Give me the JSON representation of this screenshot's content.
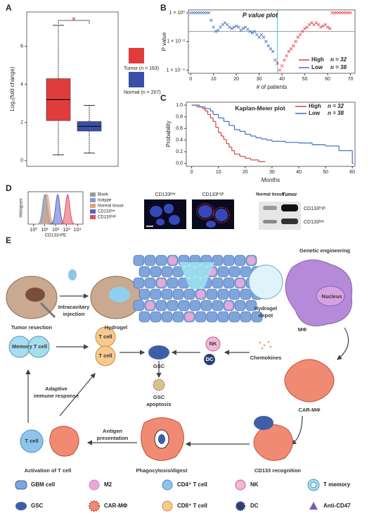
{
  "panels": {
    "A": {
      "letter": "A",
      "chart": {
        "type": "box",
        "ylabel": "Log₂(fold change)",
        "ylim": [
          -0.3,
          7.8
        ],
        "yticks": [
          0,
          2,
          4,
          6
        ],
        "significance": "*",
        "series": [
          {
            "name": "Tumor (n = 163)",
            "color": "#e03c3c",
            "min": 0.3,
            "q1": 2.1,
            "median": 3.2,
            "q3": 4.3,
            "max": 7.1
          },
          {
            "name": "Normal (n = 207)",
            "color": "#3a4fa8",
            "min": 0.4,
            "q1": 1.55,
            "median": 1.8,
            "q3": 2.05,
            "max": 2.9
          }
        ]
      }
    },
    "B": {
      "letter": "B",
      "chart": {
        "type": "scatter",
        "title": "P value plot",
        "xlabel": "# of patients",
        "ylabel": "P value",
        "log_y": true,
        "xlim": [
          -1,
          72
        ],
        "ylim": [
          6e-05,
          1.6
        ],
        "xticks": [
          0,
          10,
          20,
          30,
          40,
          50,
          60,
          70
        ],
        "yticks": [
          {
            "value": 0.0001,
            "label": "1 × 10⁻⁴"
          },
          {
            "value": 0.01,
            "label": "1 × 10⁻²"
          },
          {
            "value": 1,
            "label": "1 × 10⁰"
          }
        ],
        "threshold": 0.05,
        "cutoff": 38,
        "series": [
          {
            "name": "High",
            "n_label": "n = 32",
            "color": "#e03c3c",
            "x": [
              38,
              39,
              40,
              41,
              42,
              43,
              44,
              45,
              46,
              47,
              48,
              49,
              50,
              51,
              52,
              53,
              54,
              55,
              56,
              57,
              58,
              59,
              60,
              61,
              62,
              63,
              64,
              65,
              66,
              67,
              68,
              69,
              70
            ],
            "values": [
              0.0003,
              0.0001,
              0.0002,
              0.0005,
              0.001,
              0.002,
              0.003,
              0.005,
              0.01,
              0.02,
              0.03,
              0.05,
              0.08,
              0.1,
              0.15,
              0.2,
              0.15,
              0.2,
              0.15,
              0.1,
              0.12,
              0.15,
              0.1,
              0.08,
              1,
              1,
              1,
              1,
              1,
              1,
              1,
              1,
              1
            ]
          },
          {
            "name": "Low",
            "n_label": "n = 38",
            "color": "#3a6ec0",
            "x": [
              0,
              1,
              2,
              3,
              4,
              5,
              6,
              7,
              8,
              9,
              10,
              11,
              12,
              13,
              14,
              15,
              16,
              17,
              18,
              19,
              20,
              21,
              22,
              23,
              24,
              25,
              26,
              27,
              28,
              29,
              30,
              31,
              32,
              33,
              34,
              35,
              36,
              37
            ],
            "values": [
              1,
              1,
              1,
              1,
              1,
              1,
              1,
              1,
              1,
              0.3,
              0.1,
              0.05,
              0.06,
              0.1,
              0.15,
              0.2,
              0.15,
              0.1,
              0.08,
              0.1,
              0.12,
              0.1,
              0.06,
              0.08,
              0.1,
              0.07,
              0.05,
              0.04,
              0.05,
              0.03,
              0.02,
              0.03,
              0.02,
              0.01,
              0.005,
              0.003,
              0.002,
              0.0005
            ]
          }
        ]
      }
    },
    "C": {
      "letter": "C",
      "chart": {
        "type": "step",
        "title": "Kaplan-Meier plot",
        "xlabel": "Months",
        "ylabel": "Probability",
        "xlim": [
          -2,
          61
        ],
        "ylim": [
          -0.05,
          1.05
        ],
        "xticks": [
          0,
          10,
          20,
          30,
          40,
          50,
          60
        ],
        "yticks": [
          {
            "value": 0,
            "label": "0.0"
          },
          0.2,
          0.4,
          0.6,
          0.8,
          {
            "value": 1,
            "label": "1.0"
          }
        ],
        "series": [
          {
            "name": "High",
            "n_label": "n = 32",
            "color": "#e03c3c",
            "x": [
              0,
              2,
              4,
              5,
              6,
              7,
              8,
              9,
              10,
              11,
              12,
              13,
              14,
              15,
              16,
              18,
              20,
              22,
              25,
              27
            ],
            "values": [
              1,
              0.97,
              0.94,
              0.9,
              0.84,
              0.78,
              0.72,
              0.62,
              0.53,
              0.47,
              0.41,
              0.34,
              0.28,
              0.22,
              0.16,
              0.12,
              0.09,
              0.06,
              0.03,
              0.03
            ]
          },
          {
            "name": "Low",
            "n_label": "n = 38",
            "color": "#3a6ec0",
            "x": [
              0,
              3,
              5,
              7,
              8,
              10,
              12,
              14,
              16,
              18,
              20,
              22,
              24,
              26,
              28,
              30,
              35,
              40,
              45,
              50,
              55,
              58,
              60
            ],
            "values": [
              1,
              0.97,
              0.94,
              0.9,
              0.84,
              0.78,
              0.72,
              0.65,
              0.58,
              0.55,
              0.5,
              0.47,
              0.44,
              0.42,
              0.4,
              0.38,
              0.36,
              0.35,
              0.32,
              0.3,
              0.22,
              0.22,
              0
            ]
          }
        ]
      }
    },
    "D": {
      "letter": "D",
      "chart": {
        "type": "density",
        "ylabel": "Histogram",
        "xlabel": "CD133-PE",
        "xlim": [
          -0.5,
          4.5
        ],
        "xticks": [
          {
            "value": 0,
            "label": "10⁰"
          },
          {
            "value": 1,
            "label": "10¹"
          },
          {
            "value": 2,
            "label": "10²"
          },
          {
            "value": 3,
            "label": "10³"
          },
          {
            "value": 4,
            "label": "10⁴"
          }
        ],
        "series": [
          {
            "name": "Blank",
            "color": "#9a9a9a",
            "center": 1.0
          },
          {
            "name": "Isotype",
            "color": "#7aa0d8",
            "center": 1.1
          },
          {
            "name": "Normal tissue",
            "color": "#e8a070",
            "center": 1.25
          },
          {
            "name": "CD133ˡᵒʷ",
            "color": "#5564c8",
            "center": 2.2
          },
          {
            "name": "CD133ʰⁱᵍʰ",
            "color": "#e05060",
            "center": 3.1
          }
        ]
      },
      "images": [
        "CD133ˡᵒʷ",
        "CD133ʰⁱᵍʰ"
      ],
      "blot": {
        "columns": [
          "Normal tissue",
          "Tumor"
        ],
        "rows": [
          "CD133ʰⁱᵍʰ",
          "CD133ˡᵒʷ"
        ]
      }
    },
    "E": {
      "letter": "E",
      "labels": {
        "resection": "Tumor resection",
        "injection": [
          "Intracavitary",
          "injection"
        ],
        "hydrogel": "Hydrogel",
        "depot": [
          "Hydrogel",
          "depot"
        ],
        "engineering": "Genetic engineering",
        "nucleus": "Nucleus",
        "macrophage": "MΦ",
        "car": "CAR-MΦ",
        "recognition": "CD133 recognition",
        "phago": "Phagocytosis/digest",
        "antigen": [
          "Antigen",
          "presentation"
        ],
        "activation": "Activation of T cell",
        "adaptive": [
          "Adaptive",
          "immune response"
        ],
        "memory": "Memory T cell",
        "tcell": "T cell",
        "gsc": "GSC",
        "apoptosis": [
          "GSC",
          "apoptosis"
        ],
        "nk": "NK",
        "dc": "DC",
        "chemokines": "Chemokines"
      },
      "legend": [
        "GBM cell",
        "M2",
        "CD4⁺ T cell",
        "NK",
        "T memory",
        "GSC",
        "CAR-MΦ",
        "CD8⁺ T cell",
        "DC",
        "Anti-CD47"
      ]
    }
  }
}
